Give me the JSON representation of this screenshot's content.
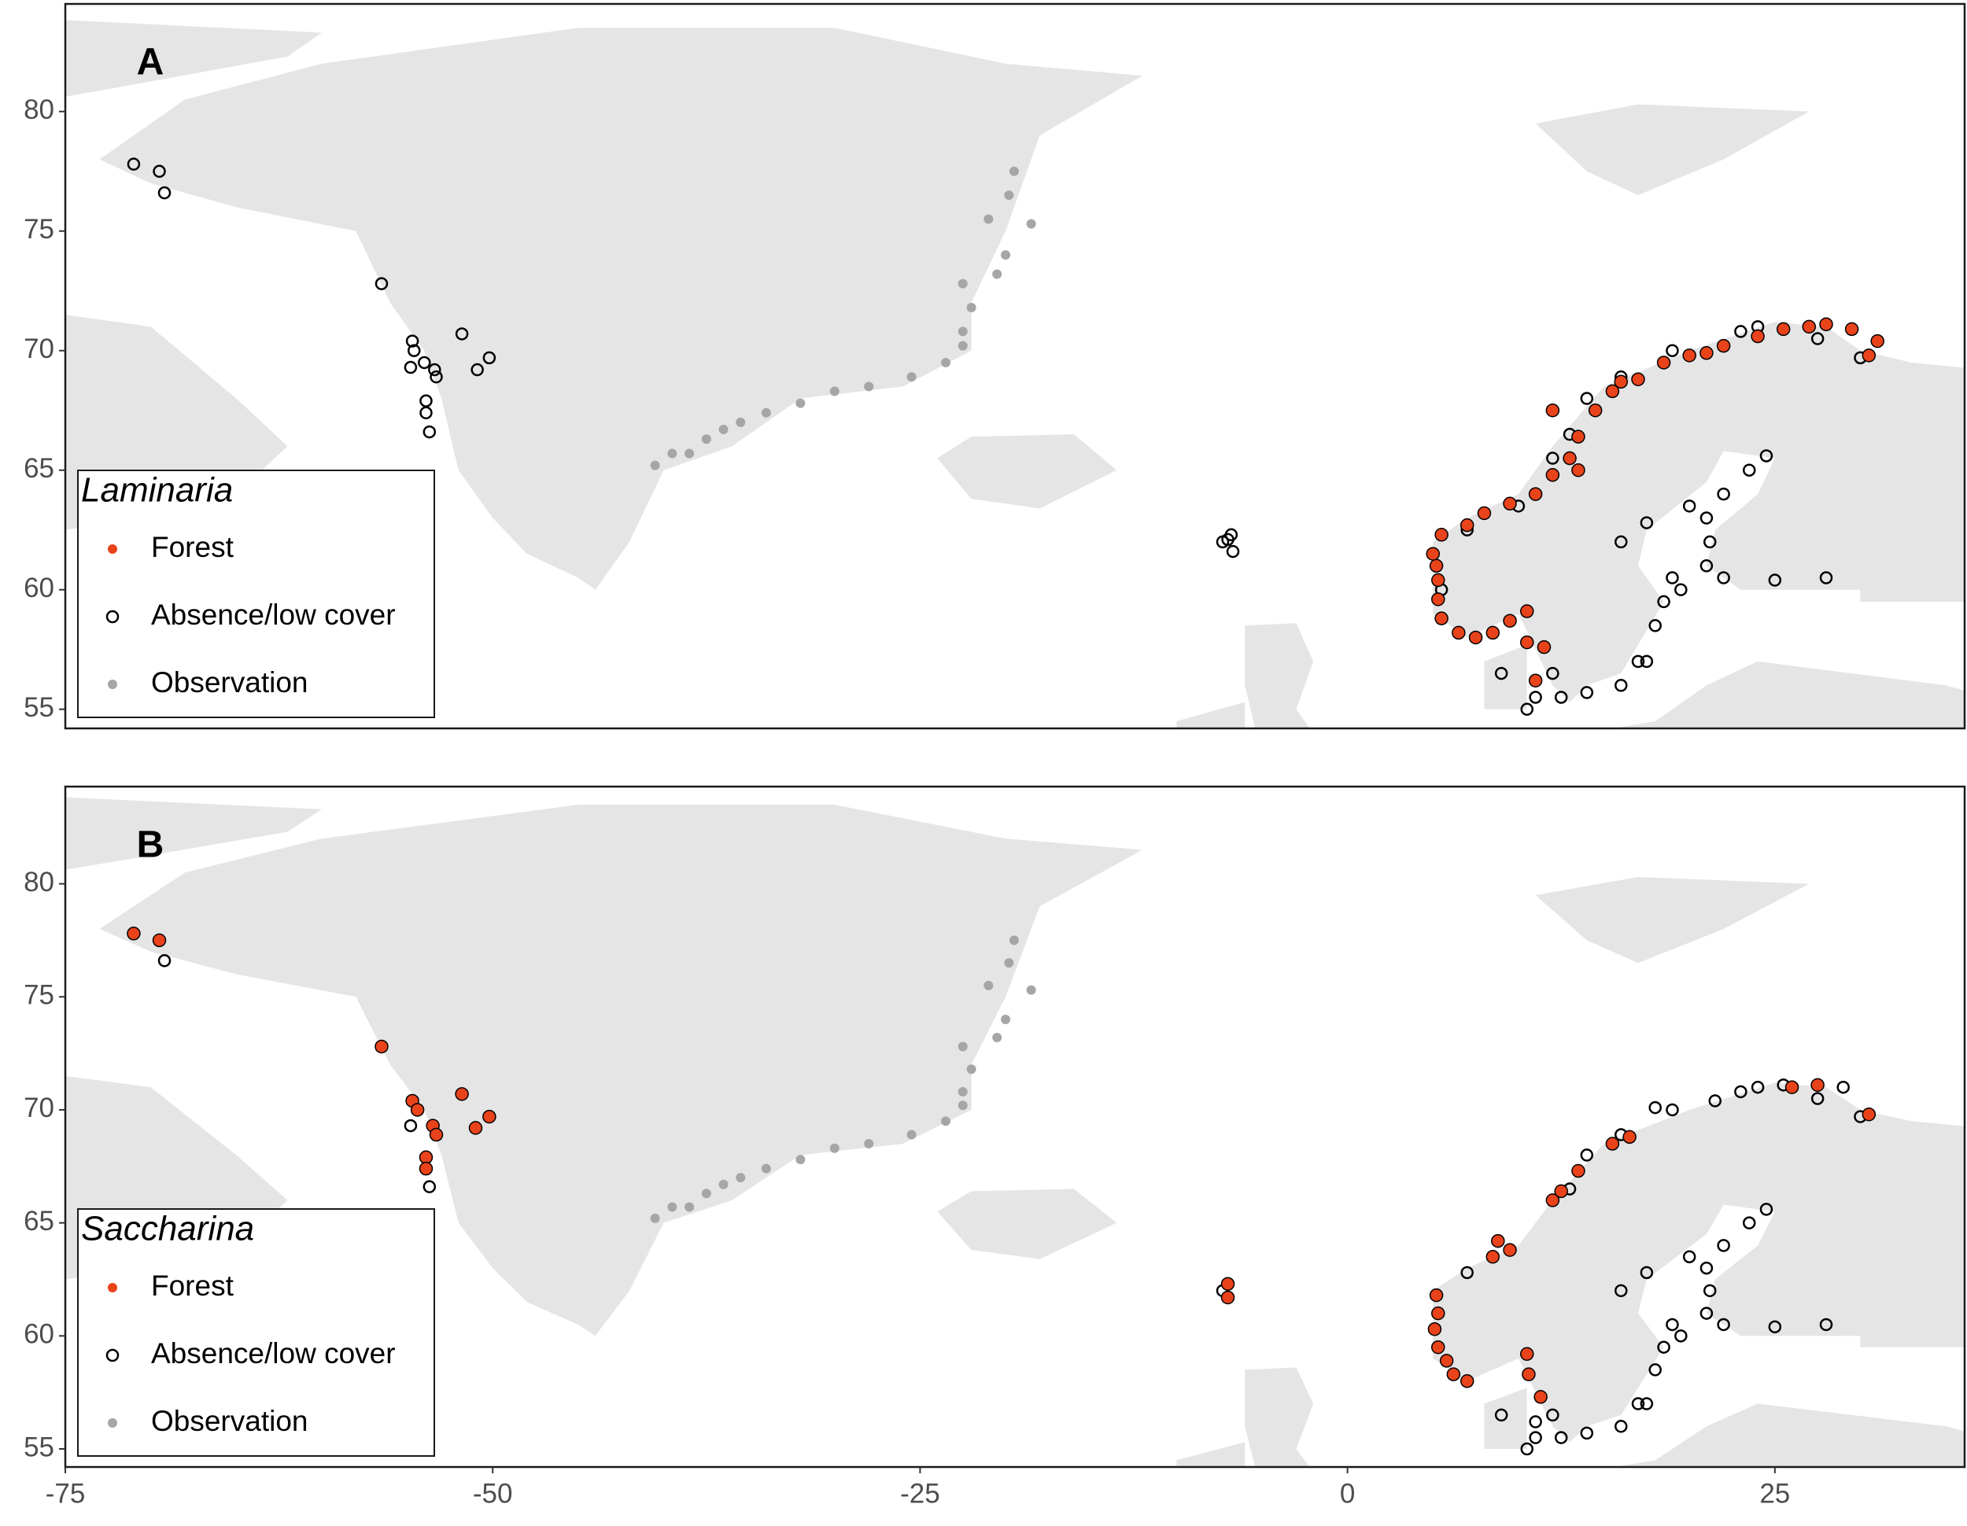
{
  "chart_data": [
    {
      "type": "scatter",
      "panel_label": "A",
      "legend_title": "Laminaria",
      "legend": "bottom-left",
      "xlim": [
        -75,
        36.1
      ],
      "ylim": [
        54.2,
        84.5
      ],
      "yticks": [
        55,
        60,
        65,
        70,
        75,
        80
      ],
      "series": [
        {
          "name": "Forest",
          "color": "#e8431a",
          "edgecolor": "#000000",
          "filled": true,
          "x": [
            5.3,
            5.2,
            5,
            5.5,
            7,
            8,
            9.5,
            11,
            12,
            13,
            13.5,
            14.5,
            15.5,
            17,
            18.5,
            20,
            22,
            24,
            25.5,
            27,
            28,
            29.5,
            31,
            5.5,
            6.5,
            7.5,
            8.5,
            9.5,
            10.5,
            10.5,
            11.5,
            11,
            5.3,
            12,
            13.5,
            16,
            21,
            30.5
          ],
          "values": [
            60.4,
            61,
            61.5,
            62.3,
            62.7,
            63.2,
            63.6,
            64,
            64.8,
            65.5,
            66.4,
            67.5,
            68.3,
            68.8,
            69.5,
            69.8,
            70.2,
            70.6,
            70.9,
            71,
            71.1,
            70.9,
            70.4,
            58.8,
            58.2,
            58,
            58.2,
            58.7,
            59.1,
            57.8,
            57.6,
            56.2,
            59.6,
            67.5,
            65,
            68.7,
            69.9,
            69.8
          ]
        },
        {
          "name": "Absence/low cover",
          "color": "#000000",
          "filled": false,
          "x": [
            -71,
            -69.5,
            -69.2,
            -56.5,
            -54.7,
            -54.6,
            -54.8,
            -54,
            -53.4,
            -53.3,
            -51.8,
            -50.9,
            -50.2,
            -53.9,
            -53.9,
            -53.7,
            -7,
            -6.8,
            -7.3,
            -6.7,
            24.5,
            23.5,
            22,
            21,
            21.2,
            21,
            22,
            25,
            28,
            19.5,
            18.5,
            18,
            17,
            16,
            14,
            12.5,
            11,
            10.5,
            11,
            12,
            9,
            16,
            17.5,
            20,
            17.5,
            19,
            30,
            27.5,
            24,
            23,
            19,
            16,
            14,
            13,
            12,
            10,
            7,
            5.2,
            5.5
          ],
          "values": [
            77.8,
            77.5,
            76.6,
            72.8,
            70.4,
            70,
            69.3,
            69.5,
            69.2,
            68.9,
            70.7,
            69.2,
            69.7,
            67.9,
            67.4,
            66.6,
            62.1,
            62.3,
            62,
            61.6,
            65.6,
            65,
            64,
            63,
            62,
            61,
            60.5,
            60.4,
            60.5,
            60,
            59.5,
            58.5,
            57,
            56,
            55.7,
            55.5,
            55.5,
            55,
            56.2,
            56.5,
            56.5,
            62,
            62.8,
            63.5,
            57,
            60.5,
            69.7,
            70.5,
            71,
            70.8,
            70,
            68.9,
            68,
            66.5,
            65.5,
            63.5,
            62.5,
            61,
            60
          ]
        },
        {
          "name": "Observation",
          "color": "#a6a6a6",
          "filled": true,
          "x": [
            -19.5,
            -19.8,
            -18.5,
            -20,
            -20.5,
            -22.5,
            -22,
            -22.5,
            -22.5,
            -23.5,
            -25.5,
            -28,
            -30,
            -32,
            -34,
            -35.5,
            -37.5,
            -39.5,
            -40.5,
            -38.5,
            -36.5,
            -21
          ],
          "values": [
            77.5,
            76.5,
            75.3,
            74,
            73.2,
            72.8,
            71.8,
            70.8,
            70.2,
            69.5,
            68.9,
            68.5,
            68.3,
            67.8,
            67.4,
            67,
            66.3,
            65.7,
            65.2,
            65.7,
            66.7,
            75.5
          ]
        }
      ]
    },
    {
      "type": "scatter",
      "panel_label": "B",
      "legend_title": "Saccharina",
      "legend": "bottom-left",
      "xlim": [
        -75,
        36.1
      ],
      "ylim": [
        54.2,
        84.3
      ],
      "yticks": [
        55,
        60,
        65,
        70,
        75,
        80
      ],
      "xticks": [
        -75,
        -50,
        -25,
        0,
        25
      ],
      "series": [
        {
          "name": "Forest",
          "color": "#e8431a",
          "edgecolor": "#000000",
          "filled": true,
          "x": [
            -71,
            -69.5,
            -56.5,
            -54.7,
            -54.4,
            -53.5,
            -53.3,
            -51.8,
            -50.2,
            -51,
            -53.9,
            -53.9,
            -7,
            -7,
            5.2,
            5.3,
            5.1,
            5.3,
            5.8,
            6.2,
            7,
            10.5,
            10.6,
            11.3,
            8.5,
            8.8,
            12,
            12.5,
            13.5,
            15.5,
            16.5,
            26,
            27.5,
            30.5,
            9.5
          ],
          "values": [
            77.8,
            77.5,
            72.8,
            70.4,
            70,
            69.3,
            68.9,
            70.7,
            69.7,
            69.2,
            67.9,
            67.4,
            62.3,
            61.7,
            61.8,
            61,
            60.3,
            59.5,
            58.9,
            58.3,
            58,
            59.2,
            58.3,
            57.3,
            63.5,
            64.2,
            66,
            66.4,
            67.3,
            68.5,
            68.8,
            71,
            71.1,
            69.8,
            63.8
          ]
        },
        {
          "name": "Absence/low cover",
          "color": "#000000",
          "filled": false,
          "x": [
            -69.2,
            -54.8,
            -53.7,
            -7.3,
            24.5,
            23.5,
            22,
            21,
            21.2,
            21,
            22,
            25,
            28,
            19.5,
            18.5,
            18,
            17,
            16,
            14,
            12.5,
            11,
            10.5,
            11,
            12,
            9,
            16,
            17.5,
            20,
            17.5,
            19,
            30,
            27.5,
            24,
            23,
            19,
            16,
            14,
            13,
            7,
            29,
            25.5,
            21.5,
            18
          ],
          "values": [
            76.6,
            69.3,
            66.6,
            62,
            65.6,
            65,
            64,
            63,
            62,
            61,
            60.5,
            60.4,
            60.5,
            60,
            59.5,
            58.5,
            57,
            56,
            55.7,
            55.5,
            55.5,
            55,
            56.2,
            56.5,
            56.5,
            62,
            62.8,
            63.5,
            57,
            60.5,
            69.7,
            70.5,
            71,
            70.8,
            70,
            68.9,
            68,
            66.5,
            62.8,
            71,
            71.1,
            70.4,
            70.1
          ]
        },
        {
          "name": "Observation",
          "color": "#a6a6a6",
          "filled": true,
          "x": [
            -19.5,
            -19.8,
            -18.5,
            -20,
            -20.5,
            -22.5,
            -22,
            -22.5,
            -22.5,
            -23.5,
            -25.5,
            -28,
            -30,
            -32,
            -34,
            -35.5,
            -37.5,
            -39.5,
            -40.5,
            -38.5,
            -36.5,
            -21
          ],
          "values": [
            77.5,
            76.5,
            75.3,
            74,
            73.2,
            72.8,
            71.8,
            70.8,
            70.2,
            69.5,
            68.9,
            68.5,
            68.3,
            67.8,
            67.4,
            67,
            66.3,
            65.7,
            65.2,
            65.7,
            66.7,
            75.5
          ]
        }
      ]
    }
  ]
}
